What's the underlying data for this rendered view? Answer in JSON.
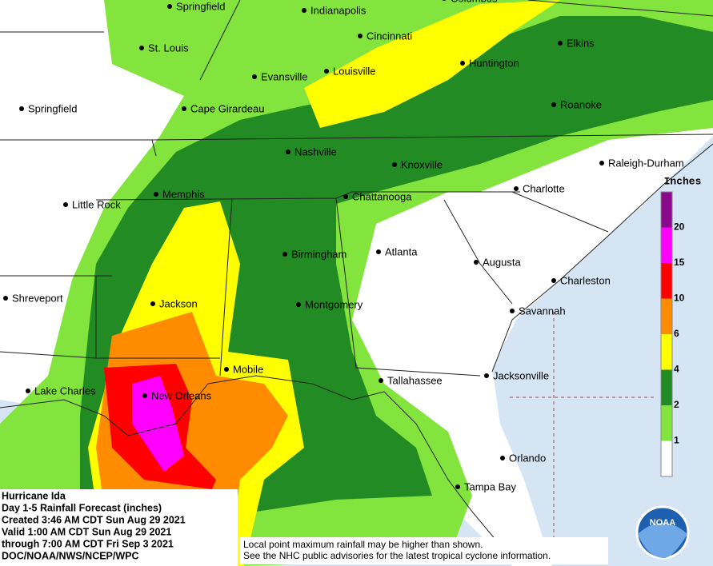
{
  "cities": [
    "Springfield",
    "Indianapolis",
    "Columbus",
    "Cincinnati",
    "Elkins",
    "St. Louis",
    "Huntington",
    "Evansville",
    "Louisville",
    "Springfield",
    "Cape Girardeau",
    "Roanoke",
    "Nashville",
    "Raleigh-Durham",
    "Knoxville",
    "Charlotte",
    "Memphis",
    "Chattanooga",
    "Little Rock",
    "Birmingham",
    "Atlanta",
    "Augusta",
    "Charleston",
    "Shreveport",
    "Jackson",
    "Montgomery",
    "Savannah",
    "Mobile",
    "Jacksonville",
    "Tallahassee",
    "Lake Charles",
    "New Orleans",
    "Orlando",
    "Tampa Bay"
  ],
  "legend": {
    "title": "Inches",
    "levels": [
      {
        "value": 20,
        "color": "#8b0a8b"
      },
      {
        "value": 15,
        "color": "#ff00ff"
      },
      {
        "value": 10,
        "color": "#ff0000"
      },
      {
        "value": 6,
        "color": "#ff8c00"
      },
      {
        "value": 4,
        "color": "#ffff00"
      },
      {
        "value": 2,
        "color": "#238b23"
      },
      {
        "value": 1,
        "color": "#82e43c"
      }
    ]
  },
  "info": {
    "lines": [
      "Hurricane Ida",
      "Day 1-5 Rainfall Forecast (inches)",
      "Created 3:46 AM CDT Sun Aug 29 2021",
      "Valid 1:00 AM CDT Sun Aug 29 2021",
      "through 7:00 AM CDT Fri Sep 3 2021",
      "DOC/NOAA/NWS/NCEP/WPC"
    ]
  },
  "footnote": {
    "lines": [
      "Local point maximum rainfall may be higher than shown.",
      "See the NHC public advisories for the latest tropical cyclone information."
    ]
  },
  "logo": {
    "text": "NOAA"
  }
}
